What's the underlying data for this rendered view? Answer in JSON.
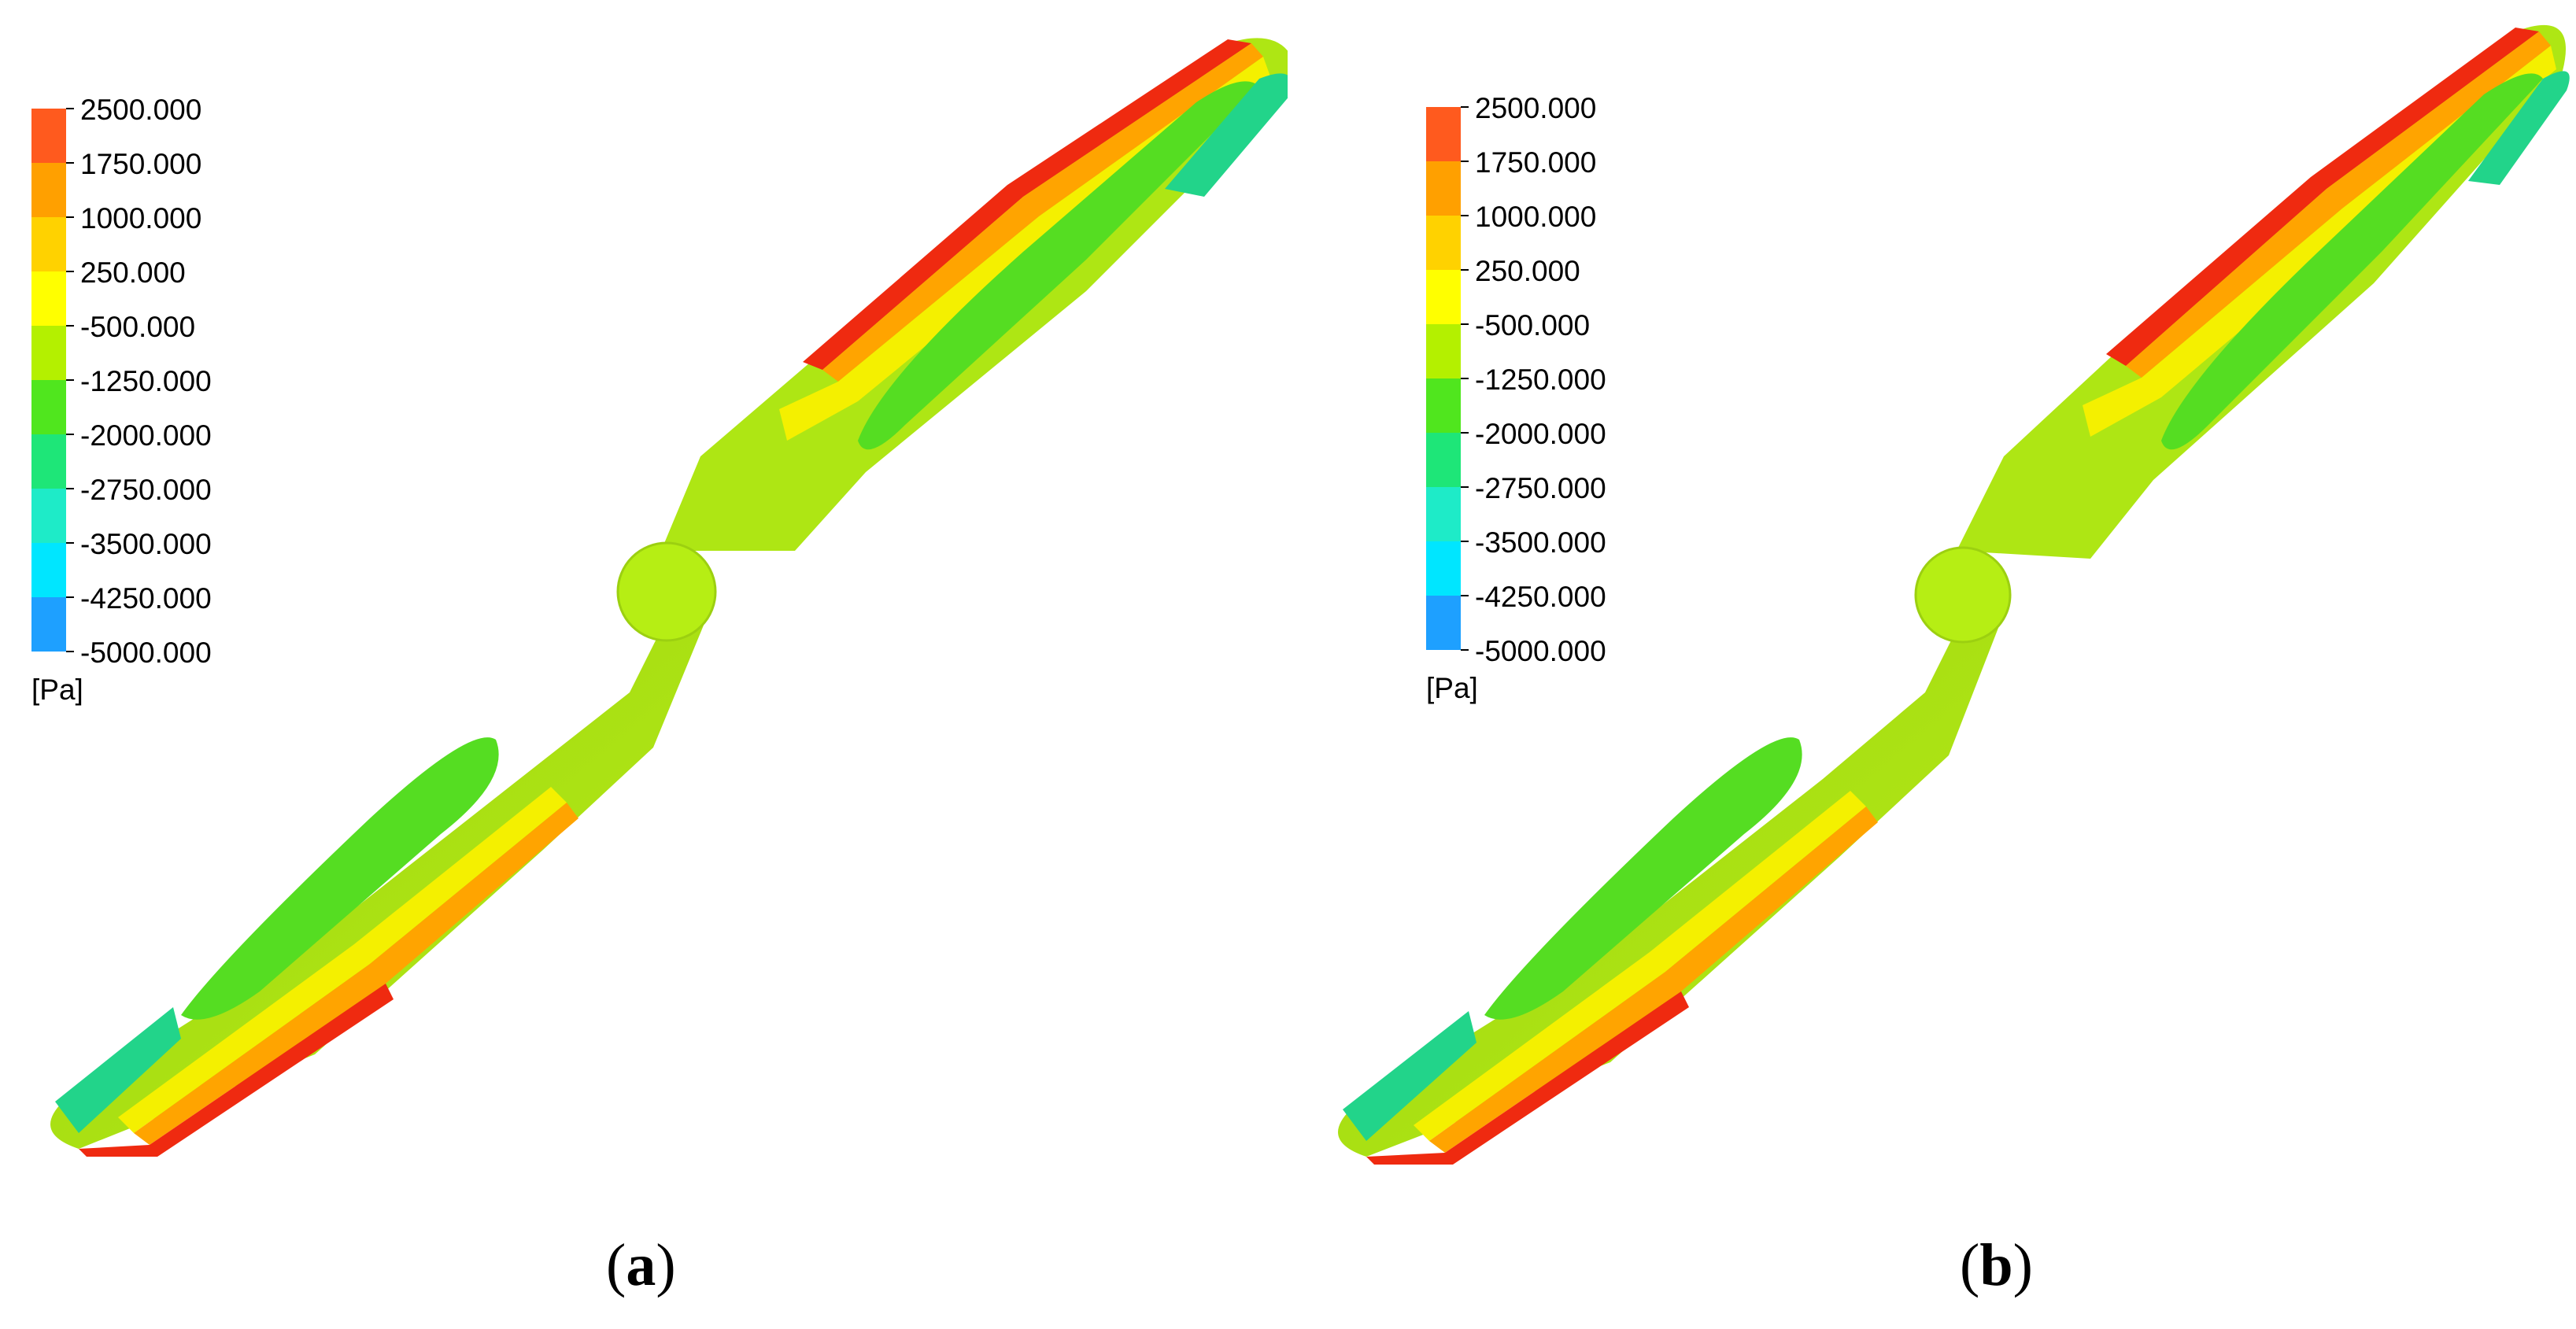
{
  "panels": [
    {
      "id": "a",
      "caption": {
        "open": "(",
        "letter": "a",
        "close": ")"
      },
      "legend": {
        "labels": [
          "2500.000",
          "1750.000",
          "1000.000",
          "250.000",
          "-500.000",
          "-1250.000",
          "-2000.000",
          "-2750.000",
          "-3500.000",
          "-4250.000",
          "-5000.000"
        ],
        "unit": "[Pa]",
        "colors": [
          "#ff5a1e",
          "#ffa000",
          "#ffd200",
          "#ffff00",
          "#b4f000",
          "#50e61e",
          "#1ee678",
          "#1eebc8",
          "#00e6ff",
          "#1ea0ff",
          "#1450ff"
        ]
      }
    },
    {
      "id": "b",
      "caption": {
        "open": "(",
        "letter": "b",
        "close": ")"
      },
      "legend": {
        "labels": [
          "2500.000",
          "1750.000",
          "1000.000",
          "250.000",
          "-500.000",
          "-1250.000",
          "-2000.000",
          "-2750.000",
          "-3500.000",
          "-4250.000",
          "-5000.000"
        ],
        "unit": "[Pa]",
        "colors": [
          "#ff5a1e",
          "#ffa000",
          "#ffd200",
          "#ffff00",
          "#b4f000",
          "#50e61e",
          "#1ee678",
          "#1eebc8",
          "#00e6ff",
          "#1ea0ff",
          "#1450ff"
        ]
      }
    }
  ],
  "colors": {
    "blade_base": "#aee614",
    "blade_dark": "#8cbf10",
    "low_pressure": "#55dd22",
    "tip_low": "#22d48a",
    "edge_yellow": "#f4f000",
    "edge_orange": "#ffa400",
    "edge_red": "#ef2a10",
    "hub": "#b6ee14"
  }
}
